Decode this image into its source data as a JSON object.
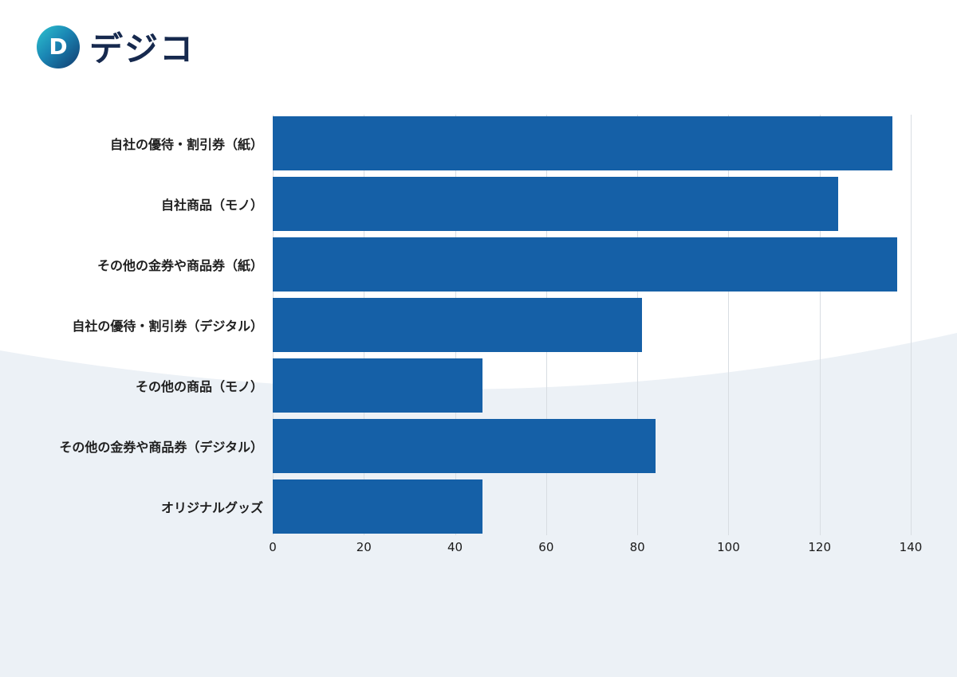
{
  "logo": {
    "brand": "デジコ",
    "mark_letter": "D"
  },
  "colors": {
    "bar": "#1560a7",
    "wave": "#ecf1f6",
    "grid": "#d8dde2",
    "brand_navy": "#16294e"
  },
  "chart_data": {
    "type": "bar",
    "orientation": "horizontal",
    "title": "",
    "xlabel": "",
    "ylabel": "",
    "categories": [
      "自社の優待・割引券（紙）",
      "自社商品（モノ）",
      "その他の金券や商品券（紙）",
      "自社の優待・割引券（デジタル）",
      "その他の商品（モノ）",
      "その他の金券や商品券（デジタル）",
      "オリジナルグッズ"
    ],
    "values": [
      136,
      124,
      137,
      81,
      46,
      84,
      46
    ],
    "xlim": [
      0,
      140
    ],
    "xticks": [
      0,
      20,
      40,
      60,
      80,
      100,
      120,
      140
    ],
    "grid": true,
    "legend": false,
    "bar_color": "#1560a7"
  }
}
